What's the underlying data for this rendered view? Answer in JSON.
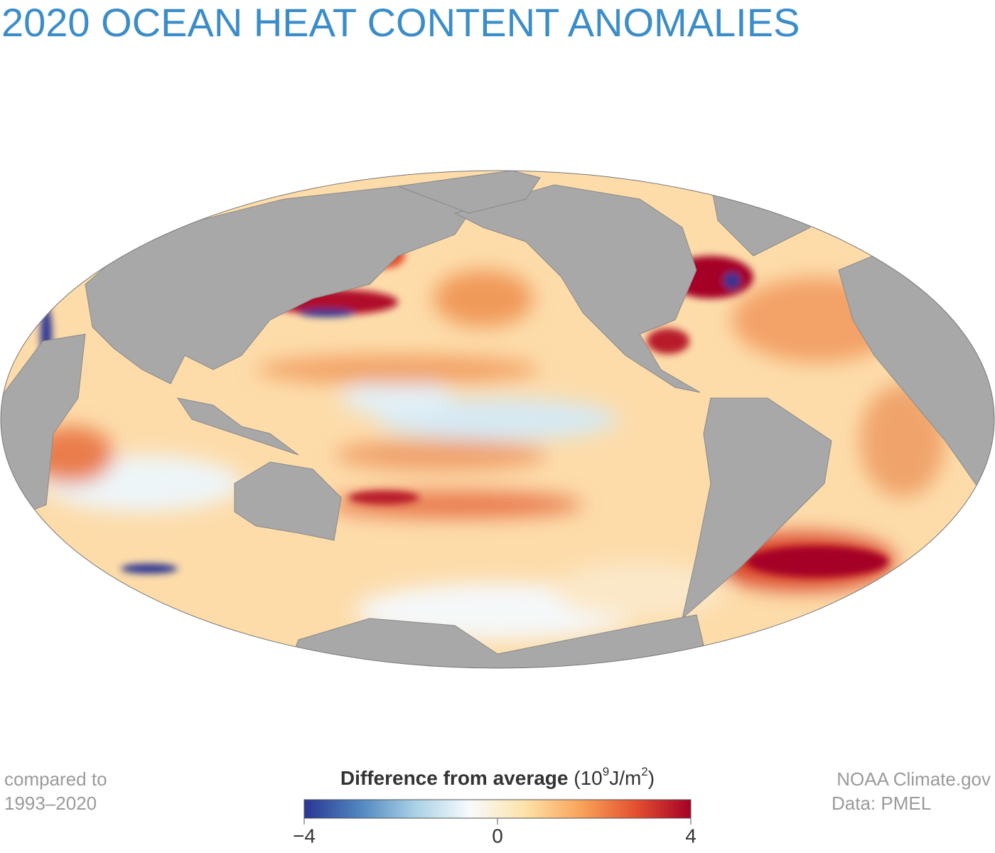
{
  "title": "2020 OCEAN HEAT CONTENT ANOMALIES",
  "note": [
    "compared to",
    "1993–2020"
  ],
  "credit": [
    "NOAA Climate.gov",
    "Data: PMEL"
  ],
  "colorbar": {
    "title": "Difference from average",
    "unit_parts": [
      "(10",
      "9",
      "J/m",
      "2",
      ")"
    ],
    "range": [
      -4,
      4
    ],
    "ticks": [
      {
        "value": -4,
        "label": "−4"
      },
      0,
      4
    ],
    "colors": [
      "#2a3593",
      "#4f86c0",
      "#a9d0e6",
      "#f7fbfd",
      "#fde2a8",
      "#f9a45a",
      "#e3512f",
      "#a50026"
    ]
  }
}
